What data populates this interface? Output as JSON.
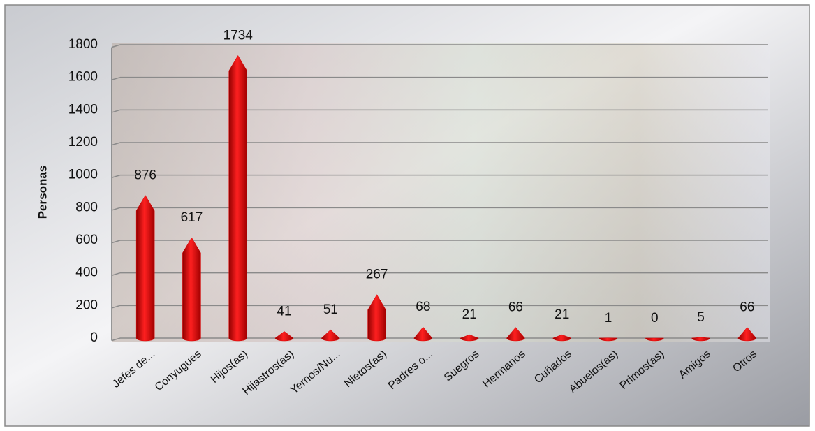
{
  "chart_data": {
    "type": "bar",
    "y_label": "Personas",
    "categories": [
      "Jefes de...",
      "Conyugues",
      "Hijos(as)",
      "Hijastros(as)",
      "Yernos/Nu...",
      "Nietos(as)",
      "Padres o...",
      "Suegros",
      "Hermanos",
      "Cuñados",
      "Abuelos(as)",
      "Primos(as)",
      "Amigos",
      "Otros"
    ],
    "values": [
      876,
      617,
      1734,
      41,
      51,
      267,
      68,
      21,
      66,
      21,
      1,
      0,
      5,
      66
    ],
    "color": "#e00000",
    "ylim": [
      0,
      1800
    ],
    "yticks": [
      0,
      200,
      400,
      600,
      800,
      1000,
      1200,
      1400,
      1600,
      1800
    ],
    "grid": true
  }
}
